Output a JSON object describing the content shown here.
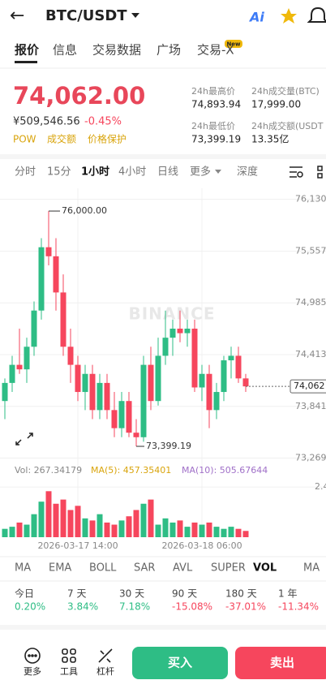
{
  "header": {
    "back": "←",
    "pair": "BTC/USDT",
    "ai": "Ai"
  },
  "tabs": [
    "报价",
    "信息",
    "交易数据",
    "广场",
    "交易-X"
  ],
  "tab_badge": "New",
  "price": {
    "last": "74,062.00",
    "cny": "¥509,546.56",
    "change": "-0.45%",
    "tags": [
      "POW",
      "成交额",
      "价格保护"
    ]
  },
  "stats": [
    {
      "label": "24h最高价",
      "value": "74,893.94"
    },
    {
      "label": "24h成交量(BTC)",
      "value": "17,999.00"
    },
    {
      "label": "24h最低价",
      "value": "73,399.19"
    },
    {
      "label": "24h成交额(USDT",
      "value": "13.35亿"
    }
  ],
  "intervals": [
    "分时",
    "15分",
    "1小时",
    "4小时",
    "日线",
    "更多",
    "深度"
  ],
  "chart_data": {
    "type": "candlestick",
    "watermark": "BINANCE",
    "up_color": "#2ebd85",
    "down_color": "#f6465d",
    "ylim": [
      73220,
      76180
    ],
    "yticks": [
      {
        "value": 76130,
        "label": "76,130"
      },
      {
        "value": 75557,
        "label": "75,557"
      },
      {
        "value": 74985,
        "label": "74,985"
      },
      {
        "value": 74413,
        "label": "74,413"
      },
      {
        "value": 73841,
        "label": "73,841"
      },
      {
        "value": 73269,
        "label": "73,269"
      }
    ],
    "categories": [
      null,
      null,
      null,
      null,
      null,
      null,
      null,
      null,
      null,
      null,
      "2026-03-17 14:00",
      null,
      null,
      null,
      null,
      null,
      null,
      null,
      null,
      null,
      null,
      null,
      null,
      null,
      null,
      null,
      null,
      "2026-03-18 06:00",
      null,
      null,
      null,
      null,
      null,
      null
    ],
    "candles": [
      [
        73900,
        74150,
        73700,
        74100
      ],
      [
        74100,
        74400,
        74000,
        74300
      ],
      [
        74300,
        74700,
        74200,
        74250
      ],
      [
        74250,
        74600,
        74100,
        74500
      ],
      [
        74500,
        75000,
        74400,
        74900
      ],
      [
        74900,
        75700,
        74800,
        75600
      ],
      [
        75600,
        76000,
        75400,
        75500
      ],
      [
        75500,
        75700,
        74900,
        75100
      ],
      [
        75100,
        75300,
        74400,
        74500
      ],
      [
        74500,
        74700,
        74100,
        74300
      ],
      [
        74300,
        74400,
        73900,
        74000
      ],
      [
        74000,
        74300,
        73800,
        74200
      ],
      [
        74200,
        74300,
        73700,
        73800
      ],
      [
        73800,
        74200,
        73700,
        74100
      ],
      [
        74100,
        74200,
        73700,
        73800
      ],
      [
        73800,
        74000,
        73500,
        73600
      ],
      [
        73600,
        74000,
        73500,
        73900
      ],
      [
        73900,
        74000,
        73500,
        73550
      ],
      [
        73550,
        73700,
        73399.19,
        73500
      ],
      [
        73500,
        74400,
        73450,
        74300
      ],
      [
        74300,
        74500,
        73800,
        73900
      ],
      [
        73900,
        74600,
        73850,
        74400
      ],
      [
        74400,
        74900,
        74300,
        74600
      ],
      [
        74600,
        74800,
        74400,
        74700
      ],
      [
        74700,
        74900,
        74550,
        74650
      ],
      [
        74650,
        74800,
        74500,
        74700
      ],
      [
        74700,
        74800,
        74000,
        74050
      ],
      [
        74050,
        74300,
        73900,
        74200
      ],
      [
        74200,
        74300,
        73600,
        73800
      ],
      [
        73800,
        74100,
        73700,
        74000
      ],
      [
        74000,
        74400,
        73900,
        74350
      ],
      [
        74350,
        74500,
        74150,
        74400
      ],
      [
        74400,
        74500,
        74100,
        74150
      ],
      [
        74150,
        74200,
        74000,
        74062
      ]
    ],
    "high_label": {
      "value": 76000,
      "label": "76,000.00"
    },
    "low_label": {
      "value": 73399.19,
      "label": "73,399.19"
    },
    "last_price": {
      "value": 74062,
      "label": "74,062"
    },
    "vol_legend": [
      "Vol: 267.34179",
      "MA(5): 457.35401",
      "MA(10): 505.67644"
    ],
    "volumes": [
      0.4,
      0.5,
      0.7,
      0.6,
      1.1,
      1.7,
      2.2,
      1.6,
      1.8,
      1.3,
      1.5,
      0.9,
      0.8,
      1.1,
      0.7,
      0.6,
      0.8,
      1.0,
      1.3,
      1.6,
      1.8,
      0.6,
      0.9,
      0.7,
      0.8,
      0.5,
      0.7,
      0.6,
      0.7,
      0.5,
      0.4,
      0.5,
      0.4,
      0.3
    ],
    "vlim": [
      0,
      2.6
    ],
    "vticks": [
      2.4
    ]
  },
  "indicators": [
    "MA",
    "EMA",
    "BOLL",
    "SAR",
    "AVL",
    "SUPER",
    "VOL",
    "MA"
  ],
  "performance": [
    {
      "label": "今日",
      "value": "0.20%",
      "color": "#2ebd85"
    },
    {
      "label": "7 天",
      "value": "3.84%",
      "color": "#2ebd85"
    },
    {
      "label": "30 天",
      "value": "7.18%",
      "color": "#2ebd85"
    },
    {
      "label": "90 天",
      "value": "-15.08%",
      "color": "#f6465d"
    },
    {
      "label": "180 天",
      "value": "-37.01%",
      "color": "#f6465d"
    },
    {
      "label": "1 年",
      "value": "-11.34%",
      "color": "#f6465d"
    }
  ],
  "bottom": {
    "actions": [
      "更多",
      "工具",
      "杠杆"
    ],
    "buy": "买入",
    "sell": "卖出"
  }
}
